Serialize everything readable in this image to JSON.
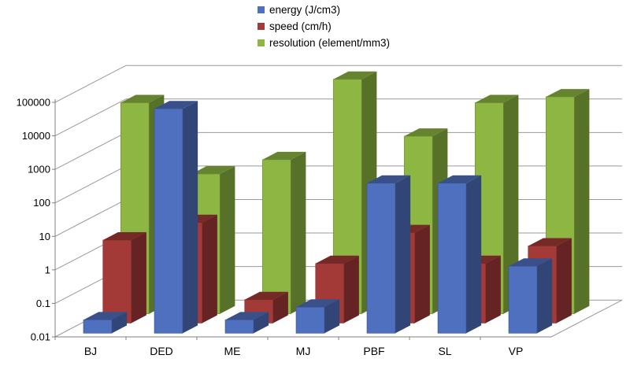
{
  "chart_data": {
    "type": "bar",
    "subtype": "3d-column-log",
    "title": "",
    "xlabel": "",
    "ylabel": "",
    "y_scale": "log",
    "ylim": [
      0.01,
      100000
    ],
    "y_ticks": [
      "0.01",
      "0.1",
      "1",
      "10",
      "100",
      "1000",
      "10000",
      "100000"
    ],
    "categories": [
      "BJ",
      "DED",
      "ME",
      "MJ",
      "PBF",
      "SL",
      "VP"
    ],
    "series": [
      {
        "name": "energy (J/cm3)",
        "color": "#4f6fbf",
        "values": [
          0.025,
          50000,
          0.025,
          0.06,
          300,
          300,
          1
        ]
      },
      {
        "name": "speed (cm/h)",
        "color": "#a33a38",
        "values": [
          3,
          10,
          0.05,
          0.6,
          5,
          0.6,
          2
        ]
      },
      {
        "name": "resolution (element/mm3)",
        "color": "#8db642",
        "values": [
          20000,
          150,
          400,
          100000,
          2000,
          20000,
          30000
        ]
      }
    ],
    "legend_position": "top-center",
    "grid": true
  }
}
